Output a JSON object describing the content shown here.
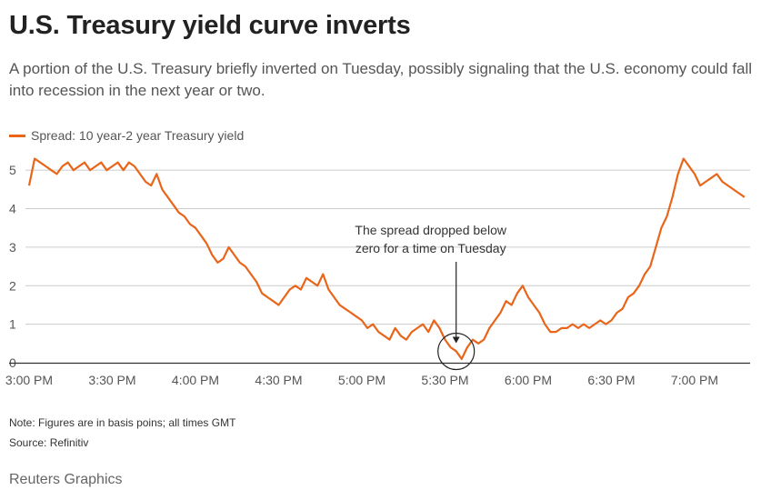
{
  "header": {
    "title": "U.S. Treasury yield curve inverts",
    "subtitle": "A portion of the U.S. Treasury briefly inverted on Tuesday, possibly signaling that the U.S. economy could fall into recession in the next year or two."
  },
  "footer": {
    "note": "Note: Figures are in basis poins; all times GMT",
    "source": "Source: Refinitiv",
    "brand": "Reuters Graphics"
  },
  "colors": {
    "series": "#e8651a",
    "grid": "#cccccc",
    "axis": "#333333",
    "text": "#555555"
  },
  "chart_data": {
    "type": "line",
    "title": "U.S. Treasury yield curve inverts",
    "xlabel": "",
    "ylabel": "",
    "ylim": [
      0,
      5.5
    ],
    "yticks": [
      0,
      1,
      2,
      3,
      4,
      5
    ],
    "xlim": [
      "15:00",
      "19:20"
    ],
    "xticks": [
      {
        "t": "15:00",
        "label": "3:00 PM"
      },
      {
        "t": "15:30",
        "label": "3:30 PM"
      },
      {
        "t": "16:00",
        "label": "4:00 PM"
      },
      {
        "t": "16:30",
        "label": "4:30 PM"
      },
      {
        "t": "17:00",
        "label": "5:00 PM"
      },
      {
        "t": "17:30",
        "label": "5:30 PM"
      },
      {
        "t": "18:00",
        "label": "6:00 PM"
      },
      {
        "t": "18:30",
        "label": "6:30 PM"
      },
      {
        "t": "19:00",
        "label": "7:00 PM"
      }
    ],
    "grid": true,
    "legend": "top-left",
    "series": [
      {
        "name": "Spread: 10 year-2 year Treasury yield",
        "x": [
          "15:00",
          "15:02",
          "15:04",
          "15:06",
          "15:08",
          "15:10",
          "15:12",
          "15:14",
          "15:16",
          "15:18",
          "15:20",
          "15:22",
          "15:24",
          "15:26",
          "15:28",
          "15:30",
          "15:32",
          "15:34",
          "15:36",
          "15:38",
          "15:40",
          "15:42",
          "15:44",
          "15:46",
          "15:48",
          "15:50",
          "15:52",
          "15:54",
          "15:56",
          "15:58",
          "16:00",
          "16:02",
          "16:04",
          "16:06",
          "16:08",
          "16:10",
          "16:12",
          "16:14",
          "16:16",
          "16:18",
          "16:20",
          "16:22",
          "16:24",
          "16:26",
          "16:28",
          "16:30",
          "16:32",
          "16:34",
          "16:36",
          "16:38",
          "16:40",
          "16:42",
          "16:44",
          "16:46",
          "16:48",
          "16:50",
          "16:52",
          "16:54",
          "16:56",
          "16:58",
          "17:00",
          "17:02",
          "17:04",
          "17:06",
          "17:08",
          "17:10",
          "17:12",
          "17:14",
          "17:16",
          "17:18",
          "17:20",
          "17:22",
          "17:24",
          "17:26",
          "17:28",
          "17:30",
          "17:32",
          "17:34",
          "17:36",
          "17:38",
          "17:40",
          "17:42",
          "17:44",
          "17:46",
          "17:48",
          "17:50",
          "17:52",
          "17:54",
          "17:56",
          "17:58",
          "18:00",
          "18:02",
          "18:04",
          "18:06",
          "18:08",
          "18:10",
          "18:12",
          "18:14",
          "18:16",
          "18:18",
          "18:20",
          "18:22",
          "18:24",
          "18:26",
          "18:28",
          "18:30",
          "18:32",
          "18:34",
          "18:36",
          "18:38",
          "18:40",
          "18:42",
          "18:44",
          "18:46",
          "18:48",
          "18:50",
          "18:52",
          "18:54",
          "18:56",
          "18:58",
          "19:00",
          "19:02",
          "19:04",
          "19:06",
          "19:08",
          "19:10",
          "19:12",
          "19:14",
          "19:16",
          "19:18"
        ],
        "values": [
          4.6,
          5.3,
          5.2,
          5.1,
          5.0,
          4.9,
          5.1,
          5.2,
          5.0,
          5.1,
          5.2,
          5.0,
          5.1,
          5.2,
          5.0,
          5.1,
          5.2,
          5.0,
          5.2,
          5.1,
          4.9,
          4.7,
          4.6,
          4.9,
          4.5,
          4.3,
          4.1,
          3.9,
          3.8,
          3.6,
          3.5,
          3.3,
          3.1,
          2.8,
          2.6,
          2.7,
          3.0,
          2.8,
          2.6,
          2.5,
          2.3,
          2.1,
          1.8,
          1.7,
          1.6,
          1.5,
          1.7,
          1.9,
          2.0,
          1.9,
          2.2,
          2.1,
          2.0,
          2.3,
          1.9,
          1.7,
          1.5,
          1.4,
          1.3,
          1.2,
          1.1,
          0.9,
          1.0,
          0.8,
          0.7,
          0.6,
          0.9,
          0.7,
          0.6,
          0.8,
          0.9,
          1.0,
          0.8,
          1.1,
          0.9,
          0.6,
          0.4,
          0.3,
          0.1,
          0.4,
          0.6,
          0.5,
          0.6,
          0.9,
          1.1,
          1.3,
          1.6,
          1.5,
          1.8,
          2.0,
          1.7,
          1.5,
          1.3,
          1.0,
          0.8,
          0.8,
          0.9,
          0.9,
          1.0,
          0.9,
          1.0,
          0.9,
          1.0,
          1.1,
          1.0,
          1.1,
          1.3,
          1.4,
          1.7,
          1.8,
          2.0,
          2.3,
          2.5,
          3.0,
          3.5,
          3.8,
          4.3,
          4.9,
          5.3,
          5.1,
          4.9,
          4.6,
          4.7,
          4.8,
          4.9,
          4.7,
          4.6,
          4.5,
          4.4,
          4.3
        ]
      }
    ],
    "annotations": [
      {
        "text_lines": [
          "The  spread dropped below",
          "zero for a time on Tuesday"
        ],
        "target_t": "17:34",
        "target_y": 0.2
      }
    ]
  }
}
